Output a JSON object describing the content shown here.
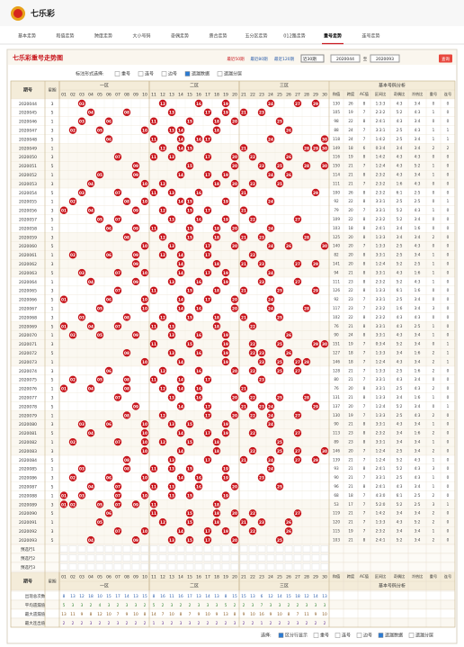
{
  "header": {
    "logo": "七乐彩"
  },
  "nav": {
    "items": [
      "基本走势",
      "和值走势",
      "跨度走势",
      "大小号码",
      "奇偶走势",
      "质合走势",
      "五分区走势",
      "012路走势",
      "重号走势",
      "连号走势"
    ],
    "active": 8
  },
  "panel": {
    "title": "七乐彩重号走势图",
    "links": [
      "最近50期",
      "最近80期",
      "最近120期"
    ],
    "select": "近30期",
    "from": "2020044",
    "to_label": "至",
    "to": "2020093",
    "query": "查询"
  },
  "controls": {
    "label": "标注形式选择:",
    "options": [
      {
        "text": "重号",
        "checked": false
      },
      {
        "text": "连号",
        "checked": false
      },
      {
        "text": "边号",
        "checked": false
      },
      {
        "text": "遗漏数据",
        "checked": true
      },
      {
        "text": "遗漏分层",
        "checked": false
      }
    ]
  },
  "table": {
    "issue_header": "期号",
    "week_header": "星期",
    "zones": [
      "一区",
      "二区",
      "三区"
    ],
    "analysis_title": "基本号码分析",
    "balls": [
      "01",
      "02",
      "03",
      "04",
      "05",
      "06",
      "07",
      "08",
      "09",
      "10",
      "11",
      "12",
      "13",
      "14",
      "15",
      "16",
      "17",
      "18",
      "19",
      "20",
      "21",
      "22",
      "23",
      "24",
      "25",
      "26",
      "27",
      "28",
      "29",
      "30"
    ],
    "analysis_headers": [
      "和值",
      "跨度",
      "AC值",
      "区间比",
      "奇偶比",
      "冷热比",
      "重号",
      "连号"
    ],
    "rows": [
      [
        "2020044",
        "3",
        [
          "03",
          "12",
          "16",
          "19",
          "24",
          "27",
          "29"
        ],
        "130",
        "26",
        "8",
        "1:3:3",
        "4:3",
        "3:4",
        "0",
        "0"
      ],
      [
        "2020045",
        "5",
        [
          "04",
          "08",
          "13",
          "17",
          "19",
          "21",
          "23"
        ],
        "105",
        "19",
        "7",
        "2:3:2",
        "5:2",
        "4:3",
        "1",
        "0"
      ],
      [
        "2020046",
        "1",
        [
          "03",
          "06",
          "11",
          "15",
          "18",
          "20",
          "25"
        ],
        "98",
        "22",
        "8",
        "2:4:1",
        "4:3",
        "3:4",
        "0",
        "0"
      ],
      [
        "2020047",
        "3",
        [
          "02",
          "05",
          "10",
          "13",
          "14",
          "18",
          "26"
        ],
        "88",
        "24",
        "7",
        "3:3:1",
        "2:5",
        "4:3",
        "1",
        "1"
      ],
      [
        "2020048",
        "5",
        [
          "06",
          "11",
          "14",
          "16",
          "17",
          "24",
          "30"
        ],
        "118",
        "24",
        "7",
        "1:4:2",
        "2:5",
        "3:4",
        "1",
        "1"
      ],
      [
        "2020049",
        "1",
        [
          "12",
          "14",
          "15",
          "21",
          "28",
          "29",
          "30"
        ],
        "149",
        "18",
        "6",
        "0:3:4",
        "3:4",
        "3:4",
        "2",
        "2"
      ],
      [
        "2020050",
        "3",
        [
          "07",
          "11",
          "13",
          "17",
          "20",
          "22",
          "26"
        ],
        "116",
        "19",
        "8",
        "1:4:2",
        "4:3",
        "4:3",
        "0",
        "0"
      ],
      [
        "2020051",
        "5",
        [
          "09",
          "15",
          "20",
          "23",
          "25",
          "28",
          "30"
        ],
        "150",
        "21",
        "7",
        "1:2:4",
        "4:3",
        "5:2",
        "1",
        "0"
      ],
      [
        "2020052",
        "1",
        [
          "05",
          "09",
          "14",
          "17",
          "19",
          "24",
          "26"
        ],
        "114",
        "21",
        "8",
        "2:3:2",
        "4:3",
        "3:4",
        "1",
        "0"
      ],
      [
        "2020053",
        "3",
        [
          "04",
          "10",
          "12",
          "18",
          "20",
          "22",
          "25"
        ],
        "111",
        "21",
        "7",
        "2:3:2",
        "1:6",
        "4:3",
        "0",
        "0"
      ],
      [
        "2020054",
        "5",
        [
          "03",
          "07",
          "11",
          "13",
          "16",
          "21",
          "29"
        ],
        "100",
        "26",
        "8",
        "2:3:2",
        "6:1",
        "2:5",
        "0",
        "0"
      ],
      [
        "2020055",
        "1",
        [
          "02",
          "08",
          "10",
          "14",
          "15",
          "19",
          "24"
        ],
        "92",
        "22",
        "8",
        "3:3:1",
        "2:5",
        "2:5",
        "0",
        "1"
      ],
      [
        "2020056",
        "3",
        [
          "01",
          "04",
          "09",
          "12",
          "15",
          "17",
          "21"
        ],
        "79",
        "20",
        "7",
        "3:3:1",
        "5:2",
        "4:3",
        "1",
        "0"
      ],
      [
        "2020057",
        "5",
        [
          "05",
          "07",
          "13",
          "16",
          "19",
          "22",
          "27"
        ],
        "109",
        "22",
        "8",
        "2:3:2",
        "5:2",
        "3:4",
        "0",
        "0"
      ],
      [
        "2020058",
        "1",
        [
          "06",
          "09",
          "11",
          "15",
          "18",
          "20",
          "24"
        ],
        "103",
        "18",
        "8",
        "2:4:1",
        "3:4",
        "1:6",
        "0",
        "0"
      ],
      [
        "2020059",
        "3",
        [
          "08",
          "12",
          "15",
          "18",
          "21",
          "23",
          "28"
        ],
        "125",
        "20",
        "8",
        "1:3:3",
        "3:4",
        "3:4",
        "2",
        "0"
      ],
      [
        "2020060",
        "5",
        [
          "10",
          "13",
          "17",
          "20",
          "24",
          "26",
          "30"
        ],
        "140",
        "20",
        "7",
        "1:3:3",
        "2:5",
        "4:3",
        "0",
        "0"
      ],
      [
        "2020061",
        "1",
        [
          "02",
          "06",
          "09",
          "12",
          "14",
          "17",
          "22"
        ],
        "82",
        "20",
        "8",
        "3:3:1",
        "2:5",
        "3:4",
        "1",
        "0"
      ],
      [
        "2020062",
        "3",
        [
          "09",
          "14",
          "18",
          "21",
          "23",
          "27",
          "29"
        ],
        "141",
        "20",
        "8",
        "1:2:4",
        "5:2",
        "2:5",
        "1",
        "0"
      ],
      [
        "2020063",
        "5",
        [
          "03",
          "07",
          "10",
          "14",
          "17",
          "19",
          "24"
        ],
        "94",
        "21",
        "8",
        "3:3:1",
        "4:3",
        "1:6",
        "1",
        "0"
      ],
      [
        "2020064",
        "1",
        [
          "04",
          "09",
          "13",
          "16",
          "19",
          "23",
          "27"
        ],
        "111",
        "23",
        "8",
        "2:3:2",
        "5:2",
        "4:3",
        "1",
        "0"
      ],
      [
        "2020065",
        "3",
        [
          "07",
          "11",
          "15",
          "18",
          "21",
          "25",
          "29"
        ],
        "126",
        "22",
        "8",
        "1:3:3",
        "6:1",
        "1:6",
        "0",
        "0"
      ],
      [
        "2020066",
        "5",
        [
          "01",
          "06",
          "10",
          "14",
          "17",
          "20",
          "24"
        ],
        "92",
        "23",
        "7",
        "3:3:1",
        "2:5",
        "3:4",
        "0",
        "0"
      ],
      [
        "2020067",
        "1",
        [
          "05",
          "10",
          "14",
          "16",
          "20",
          "24",
          "28"
        ],
        "117",
        "23",
        "7",
        "2:3:2",
        "1:6",
        "3:4",
        "3",
        "0"
      ],
      [
        "2020068",
        "3",
        [
          "03",
          "08",
          "12",
          "15",
          "18",
          "21",
          "25"
        ],
        "102",
        "22",
        "8",
        "2:3:2",
        "4:3",
        "4:3",
        "0",
        "0"
      ],
      [
        "2020069",
        "5",
        [
          "01",
          "04",
          "07",
          "11",
          "13",
          "18",
          "22"
        ],
        "76",
        "21",
        "8",
        "3:3:1",
        "4:3",
        "2:5",
        "1",
        "0"
      ],
      [
        "2020070",
        "1",
        [
          "02",
          "05",
          "09",
          "13",
          "16",
          "19",
          "26"
        ],
        "90",
        "24",
        "8",
        "3:3:1",
        "4:3",
        "3:4",
        "1",
        "0"
      ],
      [
        "2020071",
        "3",
        [
          "11",
          "15",
          "19",
          "22",
          "25",
          "29",
          "30"
        ],
        "151",
        "19",
        "7",
        "0:3:4",
        "5:2",
        "3:4",
        "0",
        "1"
      ],
      [
        "2020072",
        "5",
        [
          "08",
          "13",
          "16",
          "19",
          "22",
          "23",
          "26"
        ],
        "127",
        "18",
        "7",
        "1:3:3",
        "3:4",
        "1:6",
        "2",
        "1"
      ],
      [
        "2020073",
        "1",
        [
          "10",
          "14",
          "19",
          "23",
          "25",
          "27",
          "28"
        ],
        "146",
        "18",
        "7",
        "1:2:4",
        "4:3",
        "3:4",
        "2",
        "1"
      ],
      [
        "2020074",
        "3",
        [
          "06",
          "12",
          "16",
          "20",
          "22",
          "25",
          "27"
        ],
        "128",
        "21",
        "7",
        "1:3:3",
        "2:5",
        "1:6",
        "2",
        "0"
      ],
      [
        "2020075",
        "5",
        [
          "02",
          "05",
          "08",
          "11",
          "14",
          "17",
          "23"
        ],
        "80",
        "21",
        "7",
        "3:3:1",
        "4:3",
        "3:4",
        "0",
        "0"
      ],
      [
        "2020076",
        "1",
        [
          "01",
          "04",
          "08",
          "12",
          "14",
          "16",
          "21"
        ],
        "76",
        "20",
        "8",
        "3:3:1",
        "2:5",
        "4:3",
        "2",
        "0"
      ],
      [
        "2020077",
        "3",
        [
          "07",
          "13",
          "16",
          "20",
          "22",
          "25",
          "28"
        ],
        "131",
        "21",
        "8",
        "1:3:3",
        "3:4",
        "1:6",
        "1",
        "0"
      ],
      [
        "2020078",
        "5",
        [
          "09",
          "14",
          "17",
          "21",
          "23",
          "24",
          "29"
        ],
        "137",
        "20",
        "7",
        "1:2:4",
        "5:2",
        "3:4",
        "0",
        "1"
      ],
      [
        "2020079",
        "1",
        [
          "08",
          "12",
          "17",
          "20",
          "22",
          "24",
          "27"
        ],
        "130",
        "19",
        "7",
        "1:3:3",
        "2:5",
        "4:3",
        "2",
        "0"
      ],
      [
        "2020080",
        "3",
        [
          "03",
          "06",
          "10",
          "13",
          "15",
          "19",
          "24"
        ],
        "90",
        "21",
        "8",
        "3:3:1",
        "4:3",
        "3:4",
        "1",
        "0"
      ],
      [
        "2020081",
        "5",
        [
          "04",
          "10",
          "14",
          "17",
          "19",
          "22",
          "27"
        ],
        "113",
        "23",
        "8",
        "2:3:2",
        "3:4",
        "1:6",
        "2",
        "0"
      ],
      [
        "2020082",
        "1",
        [
          "02",
          "07",
          "10",
          "12",
          "15",
          "18",
          "25"
        ],
        "89",
        "23",
        "8",
        "3:3:1",
        "3:4",
        "3:4",
        "1",
        "0"
      ],
      [
        "2020083",
        "3",
        [
          "10",
          "14",
          "18",
          "22",
          "25",
          "27",
          "30"
        ],
        "146",
        "20",
        "7",
        "1:2:4",
        "2:5",
        "3:4",
        "2",
        "0"
      ],
      [
        "2020084",
        "5",
        [
          "08",
          "13",
          "17",
          "21",
          "24",
          "27",
          "29"
        ],
        "139",
        "21",
        "7",
        "1:2:4",
        "5:2",
        "4:3",
        "1",
        "0"
      ],
      [
        "2020085",
        "1",
        [
          "03",
          "08",
          "11",
          "13",
          "15",
          "19",
          "24"
        ],
        "93",
        "21",
        "8",
        "2:4:1",
        "5:2",
        "4:3",
        "3",
        "0"
      ],
      [
        "2020086",
        "3",
        [
          "02",
          "06",
          "10",
          "14",
          "16",
          "19",
          "23"
        ],
        "90",
        "21",
        "7",
        "3:3:1",
        "2:5",
        "4:3",
        "1",
        "0"
      ],
      [
        "2020087",
        "5",
        [
          "04",
          "07",
          "11",
          "13",
          "16",
          "20",
          "25"
        ],
        "96",
        "21",
        "8",
        "2:4:1",
        "4:3",
        "3:4",
        "1",
        "0"
      ],
      [
        "2020088",
        "1",
        [
          "01",
          "03",
          "07",
          "10",
          "13",
          "15",
          "19"
        ],
        "68",
        "18",
        "7",
        "4:3:0",
        "6:1",
        "2:5",
        "2",
        "0"
      ],
      [
        "2020089",
        "3",
        [
          "01",
          "02",
          "05",
          "07",
          "09",
          "11",
          "18"
        ],
        "53",
        "17",
        "7",
        "5:2:0",
        "5:2",
        "2:5",
        "3",
        "1"
      ],
      [
        "2020090",
        "5",
        [
          "06",
          "11",
          "15",
          "18",
          "20",
          "22",
          "27"
        ],
        "119",
        "21",
        "7",
        "1:4:2",
        "3:4",
        "3:4",
        "2",
        "0"
      ],
      [
        "2020091",
        "1",
        [
          "05",
          "12",
          "15",
          "18",
          "21",
          "23",
          "26"
        ],
        "120",
        "21",
        "7",
        "1:3:3",
        "4:3",
        "5:2",
        "2",
        "0"
      ],
      [
        "2020092",
        "3",
        [
          "07",
          "10",
          "14",
          "17",
          "19",
          "22",
          "26"
        ],
        "115",
        "19",
        "7",
        "2:3:2",
        "3:4",
        "3:4",
        "1",
        "0"
      ],
      [
        "2020093",
        "5",
        [
          "04",
          "09",
          "13",
          "15",
          "17",
          "20",
          "25"
        ],
        "103",
        "21",
        "8",
        "2:4:1",
        "5:2",
        "3:4",
        "2",
        "0"
      ]
    ],
    "predict_rows": [
      "预选行1",
      "预选行2",
      "预选行3"
    ],
    "stats": [
      {
        "label": "出现总次数",
        "values": [
          "8",
          "13",
          "12",
          "18",
          "10",
          "15",
          "17",
          "14",
          "13",
          "15",
          "8",
          "16",
          "11",
          "16",
          "17",
          "13",
          "14",
          "13",
          "8",
          "15",
          "15",
          "13",
          "6",
          "12",
          "14",
          "15",
          "18",
          "12",
          "14",
          "13"
        ]
      },
      {
        "label": "平均遗漏值",
        "values": [
          "5",
          "3",
          "3",
          "2",
          "4",
          "3",
          "2",
          "3",
          "3",
          "2",
          "5",
          "2",
          "3",
          "2",
          "2",
          "3",
          "3",
          "3",
          "5",
          "2",
          "2",
          "3",
          "7",
          "3",
          "3",
          "2",
          "2",
          "3",
          "3",
          "3"
        ]
      },
      {
        "label": "最大遗漏值",
        "values": [
          "13",
          "11",
          "9",
          "8",
          "12",
          "10",
          "7",
          "9",
          "10",
          "8",
          "14",
          "7",
          "10",
          "8",
          "7",
          "9",
          "10",
          "9",
          "13",
          "8",
          "9",
          "10",
          "16",
          "9",
          "10",
          "8",
          "7",
          "11",
          "9",
          "10"
        ]
      },
      {
        "label": "最大连出值",
        "values": [
          "2",
          "2",
          "2",
          "3",
          "2",
          "2",
          "3",
          "2",
          "2",
          "2",
          "1",
          "3",
          "2",
          "3",
          "3",
          "2",
          "2",
          "2",
          "2",
          "3",
          "2",
          "2",
          "1",
          "2",
          "2",
          "2",
          "3",
          "2",
          "2",
          "2"
        ]
      }
    ]
  },
  "footer": {
    "label": "选择:",
    "options": [
      {
        "text": "区分行显示",
        "checked": true
      },
      {
        "text": "重号",
        "checked": false
      },
      {
        "text": "连号",
        "checked": false
      },
      {
        "text": "边号",
        "checked": false
      },
      {
        "text": "遗漏数据",
        "checked": true
      },
      {
        "text": "遗漏分层",
        "checked": false
      }
    ]
  }
}
